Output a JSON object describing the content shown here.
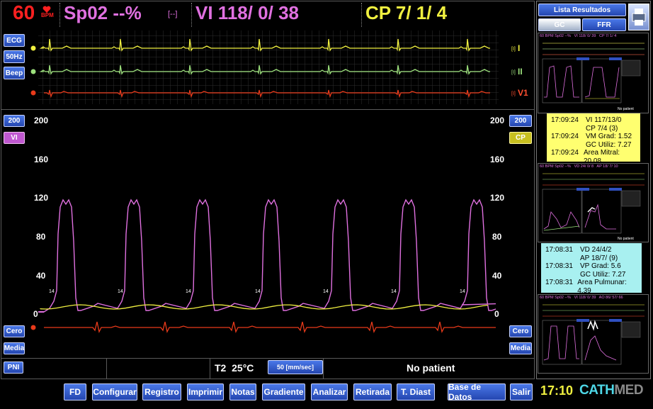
{
  "header": {
    "hr_value": "60",
    "hr_unit": "BPM",
    "spo2": "Sp02 --%",
    "bracket": "[--]",
    "vi": "VI 118/ 0/ 38",
    "cp": "CP 7/ 1/ 4"
  },
  "ecg_panel": {
    "buttons": [
      "ECG",
      "50Hz",
      "Beep"
    ],
    "leads": [
      {
        "name": "I",
        "tag": "[I]",
        "color": "#f0f040"
      },
      {
        "name": "II",
        "tag": "[I]",
        "color": "#9ce07c"
      },
      {
        "name": "V1",
        "tag": "[I]",
        "color": "#e83a1a"
      }
    ]
  },
  "pressure_panel": {
    "left_scale_button": "200",
    "left_channel_button": "VI",
    "right_scale_button": "200",
    "right_channel_button": "CP",
    "scale_labels": [
      "200",
      "160",
      "120",
      "80",
      "40",
      "0"
    ],
    "beat_marker": "14",
    "left_bottom_buttons": [
      "Cero",
      "Media"
    ],
    "right_bottom_buttons": [
      "Cero",
      "Media"
    ],
    "vi_color": "#e070e0",
    "cp_color": "#f0f040"
  },
  "status_bar": {
    "pni_button": "PNI",
    "temp": "T2  25°C",
    "speed_button": "50 [mm/sec]",
    "patient": "No patient"
  },
  "toolbar": {
    "buttons": [
      "FD",
      "Configurar",
      "Registro",
      "Imprimir",
      "Notas",
      "Gradiente",
      "Analizar",
      "Retirada",
      "T. Diast",
      "Base de Datos",
      "Salir"
    ],
    "clock": "17:10",
    "logo_cath": "CATH",
    "logo_med": "MED"
  },
  "results_panel": {
    "title_button": "Lista Resultados",
    "tabs": [
      "GC",
      "FFR"
    ],
    "thumb1_header": "60 BPM Sp02 --%   VI 118/ 0/ 39   CP 7/ 1/ 4",
    "thumb2_header": "60 BPM Sp02 --%   VD 24/ 0/ 8   AP 18/ 7/ 10",
    "thumb3_header": "60 BPM Sp02 --%   VI 118/ 0/ 39   AO 86/ 57/ 66",
    "thumb_status": "No patient",
    "result1": [
      {
        "time": "17:09:24",
        "text": "VI 117/13/0"
      },
      {
        "time": "",
        "text": "CP 7/4 (3)"
      },
      {
        "time": "17:09:24",
        "text": "VM Grad: 1.52"
      },
      {
        "time": "",
        "text": "GC Utiliz: 7.27"
      },
      {
        "time": "17:09:24",
        "text": "Area Mitral: 20.08"
      }
    ],
    "result2": [
      {
        "time": "17:08:31",
        "text": "VD 24/4/2"
      },
      {
        "time": "",
        "text": "AP 18/7/ (9)"
      },
      {
        "time": "17:08:31",
        "text": "VP Grad: 5.6"
      },
      {
        "time": "",
        "text": "GC Utiliz: 7.27"
      },
      {
        "time": "17:08:31",
        "text": "Area Pulmunar: 4.39"
      }
    ],
    "result1_color": "#ffff70",
    "result2_color": "#a8f0f0"
  }
}
